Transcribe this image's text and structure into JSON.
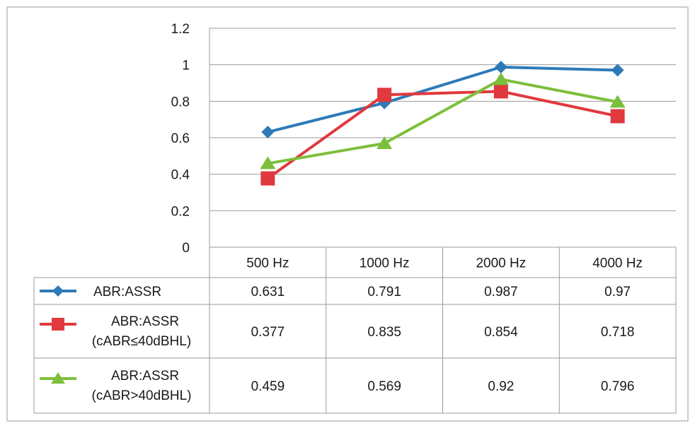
{
  "chart_data": {
    "type": "line",
    "title": "",
    "xlabel": "",
    "ylabel": "",
    "ylim": [
      0,
      1.2
    ],
    "yticks": [
      0,
      0.2,
      0.4,
      0.6,
      0.8,
      1,
      1.2
    ],
    "ytick_labels": [
      "0",
      "0.2",
      "0.4",
      "0.6",
      "0.8",
      "1",
      "1.2"
    ],
    "grid": true,
    "legend_placement": "data table",
    "categories": [
      "500 Hz",
      "1000 Hz",
      "2000 Hz",
      "4000 Hz"
    ],
    "series": [
      {
        "name": "ABR:ASSR",
        "name_lines": [
          "ABR:ASSR"
        ],
        "values": [
          0.631,
          0.791,
          0.987,
          0.97
        ],
        "value_labels": [
          "0.631",
          "0.791",
          "0.987",
          "0.97"
        ],
        "color": "#2e7ab8",
        "marker": "diamond"
      },
      {
        "name": "ABR:ASSR (cABR≤40dBHL)",
        "name_lines": [
          "ABR:ASSR",
          "(cABR≤40dBHL)"
        ],
        "values": [
          0.377,
          0.835,
          0.854,
          0.718
        ],
        "value_labels": [
          "0.377",
          "0.835",
          "0.854",
          "0.718"
        ],
        "color": "#e0393e",
        "marker": "square"
      },
      {
        "name": "ABR:ASSR (cABR>40dBHL)",
        "name_lines": [
          "ABR:ASSR",
          "(cABR>40dBHL)"
        ],
        "values": [
          0.459,
          0.569,
          0.92,
          0.796
        ],
        "value_labels": [
          "0.459",
          "0.569",
          "0.92",
          "0.796"
        ],
        "color": "#7cbf3b",
        "marker": "triangle"
      }
    ]
  }
}
